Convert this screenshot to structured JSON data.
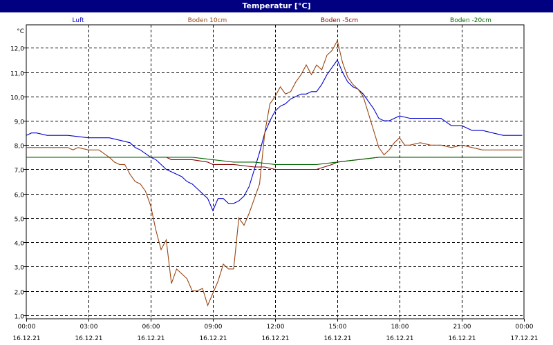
{
  "window": {
    "title": "Temperatur [°C]"
  },
  "chart_data": {
    "type": "line",
    "title": "Temperatur [°C]",
    "ylabel": "°C",
    "ylim": [
      0.85,
      12.95
    ],
    "xlim_hours": [
      0,
      24
    ],
    "yticks": [
      "1,0",
      "2,0",
      "3,0",
      "4,0",
      "5,0",
      "6,0",
      "7,0",
      "8,0",
      "9,0",
      "10,0",
      "11,0",
      "12,0"
    ],
    "xticks": [
      {
        "time": "00:00",
        "date": "16.12.21"
      },
      {
        "time": "03:00",
        "date": "16.12.21"
      },
      {
        "time": "06:00",
        "date": "16.12.21"
      },
      {
        "time": "09:00",
        "date": "16.12.21"
      },
      {
        "time": "12:00",
        "date": "16.12.21"
      },
      {
        "time": "15:00",
        "date": "16.12.21"
      },
      {
        "time": "18:00",
        "date": "16.12.21"
      },
      {
        "time": "21:00",
        "date": "16.12.21"
      },
      {
        "time": "00:00",
        "date": "17.12.21"
      }
    ],
    "grid": true,
    "legend_position": "top",
    "series": [
      {
        "name": "Luft",
        "color": "#0000cc",
        "x": [
          "00:00",
          "00:15",
          "00:30",
          "01:00",
          "02:00",
          "03:00",
          "04:00",
          "04:30",
          "05:00",
          "05:15",
          "05:30",
          "06:00",
          "06:15",
          "06:30",
          "06:45",
          "07:00",
          "07:15",
          "07:30",
          "07:45",
          "08:00",
          "08:15",
          "08:30",
          "08:45",
          "09:00",
          "09:15",
          "09:30",
          "09:45",
          "10:00",
          "10:15",
          "10:30",
          "10:45",
          "11:00",
          "11:15",
          "11:30",
          "11:45",
          "12:00",
          "12:15",
          "12:30",
          "12:45",
          "13:00",
          "13:15",
          "13:30",
          "13:45",
          "14:00",
          "14:15",
          "14:30",
          "14:45",
          "15:00",
          "15:15",
          "15:30",
          "15:45",
          "16:00",
          "16:15",
          "16:30",
          "16:45",
          "17:00",
          "17:15",
          "17:30",
          "17:45",
          "18:00",
          "18:30",
          "19:00",
          "20:00",
          "20:30",
          "21:00",
          "21:30",
          "22:00",
          "22:30",
          "23:00",
          "23:30",
          "23:55"
        ],
        "y": [
          8.4,
          8.5,
          8.5,
          8.4,
          8.4,
          8.3,
          8.3,
          8.2,
          8.1,
          7.9,
          7.8,
          7.5,
          7.4,
          7.2,
          7.0,
          6.9,
          6.8,
          6.7,
          6.5,
          6.4,
          6.2,
          6.0,
          5.8,
          5.3,
          5.8,
          5.8,
          5.6,
          5.6,
          5.7,
          5.9,
          6.3,
          7.0,
          7.7,
          8.5,
          9.0,
          9.4,
          9.6,
          9.7,
          9.9,
          10.0,
          10.1,
          10.1,
          10.2,
          10.2,
          10.5,
          10.9,
          11.2,
          11.5,
          11.0,
          10.6,
          10.4,
          10.3,
          10.1,
          9.8,
          9.5,
          9.1,
          9.0,
          9.0,
          9.1,
          9.2,
          9.1,
          9.1,
          9.1,
          8.8,
          8.8,
          8.6,
          8.6,
          8.5,
          8.4,
          8.4,
          8.4
        ]
      },
      {
        "name": "Boden 10cm",
        "color": "#994411",
        "x": [
          "00:00",
          "01:00",
          "02:00",
          "02:15",
          "02:30",
          "03:00",
          "03:30",
          "04:00",
          "04:15",
          "04:30",
          "04:45",
          "05:00",
          "05:15",
          "05:30",
          "05:45",
          "06:00",
          "06:15",
          "06:30",
          "06:45",
          "07:00",
          "07:15",
          "07:30",
          "07:45",
          "08:00",
          "08:15",
          "08:30",
          "08:45",
          "09:00",
          "09:15",
          "09:30",
          "09:45",
          "10:00",
          "10:15",
          "10:30",
          "10:45",
          "11:00",
          "11:15",
          "11:30",
          "11:45",
          "12:00",
          "12:15",
          "12:30",
          "12:45",
          "13:00",
          "13:15",
          "13:30",
          "13:45",
          "14:00",
          "14:15",
          "14:30",
          "14:45",
          "15:00",
          "15:15",
          "15:30",
          "15:45",
          "16:00",
          "16:15",
          "16:30",
          "16:45",
          "17:00",
          "17:15",
          "17:30",
          "17:45",
          "18:00",
          "18:15",
          "18:30",
          "19:00",
          "19:30",
          "20:00",
          "20:30",
          "21:00",
          "22:00",
          "22:30",
          "23:00",
          "23:30",
          "23:55"
        ],
        "y": [
          7.9,
          7.9,
          7.9,
          7.8,
          7.9,
          7.8,
          7.8,
          7.5,
          7.3,
          7.2,
          7.2,
          6.8,
          6.5,
          6.4,
          6.1,
          5.5,
          4.5,
          3.7,
          4.1,
          2.3,
          2.9,
          2.7,
          2.5,
          2.0,
          2.0,
          2.1,
          1.4,
          1.9,
          2.4,
          3.1,
          2.9,
          2.9,
          5.0,
          4.7,
          5.2,
          5.8,
          6.4,
          8.5,
          9.7,
          10.0,
          10.4,
          10.1,
          10.2,
          10.6,
          10.9,
          11.3,
          10.9,
          11.3,
          11.1,
          11.7,
          11.9,
          12.3,
          11.4,
          10.8,
          10.5,
          10.3,
          10.0,
          9.3,
          8.6,
          7.9,
          7.6,
          7.8,
          8.1,
          8.3,
          8.0,
          8.0,
          8.1,
          8.0,
          8.0,
          7.9,
          8.0,
          7.8,
          7.8,
          7.8,
          7.8,
          7.8
        ]
      },
      {
        "name": "Boden -5cm",
        "color": "#880000",
        "x": [
          "06:00",
          "06:45",
          "07:00",
          "08:00",
          "08:45",
          "09:00",
          "10:00",
          "11:00",
          "11:30",
          "12:00",
          "13:00",
          "14:00",
          "14:45",
          "15:00",
          "16:00",
          "17:00",
          "17:30",
          "18:00",
          "18:30",
          "19:00",
          "20:00",
          "21:00",
          "22:00",
          "23:00",
          "23:55"
        ],
        "y": [
          7.5,
          7.5,
          7.4,
          7.4,
          7.3,
          7.2,
          7.2,
          7.1,
          7.1,
          7.0,
          7.0,
          7.0,
          7.2,
          7.3,
          7.4,
          7.5,
          7.5,
          7.5,
          7.5,
          7.5,
          7.5,
          7.5,
          7.5,
          7.5,
          7.5
        ]
      },
      {
        "name": "Boden -20cm",
        "color": "#006600",
        "x": [
          "00:00",
          "03:00",
          "06:00",
          "08:00",
          "09:00",
          "10:00",
          "11:00",
          "12:00",
          "14:00",
          "15:00",
          "16:00",
          "17:00",
          "18:00",
          "20:00",
          "22:00",
          "23:55"
        ],
        "y": [
          7.5,
          7.5,
          7.5,
          7.5,
          7.4,
          7.3,
          7.3,
          7.2,
          7.2,
          7.3,
          7.4,
          7.5,
          7.5,
          7.5,
          7.5,
          7.5
        ]
      }
    ]
  }
}
